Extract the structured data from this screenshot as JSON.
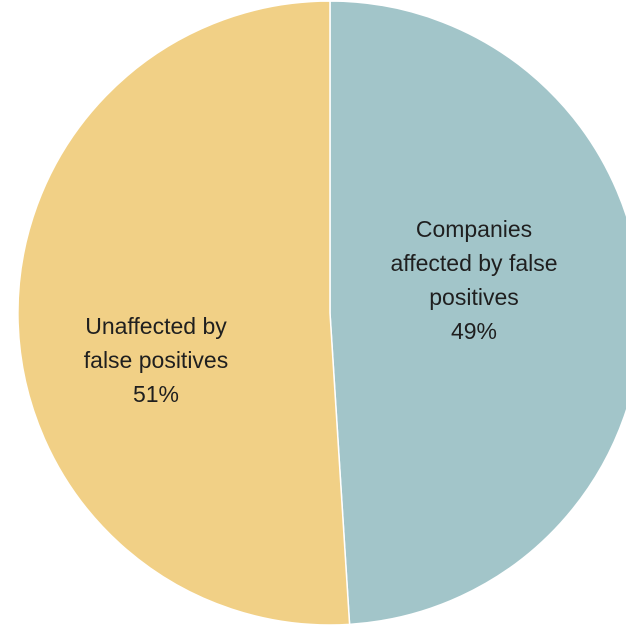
{
  "chart_data": {
    "type": "pie",
    "title": "",
    "slices": [
      {
        "label_lines": [
          "Companies",
          "affected by false",
          "positives"
        ],
        "value": 49,
        "value_label": "49%",
        "color": "#a2c5c9"
      },
      {
        "label_lines": [
          "Unaffected by",
          "false positives"
        ],
        "value": 51,
        "value_label": "51%",
        "color": "#f1d086"
      }
    ],
    "start_angle_deg": 0,
    "direction": "clockwise"
  }
}
